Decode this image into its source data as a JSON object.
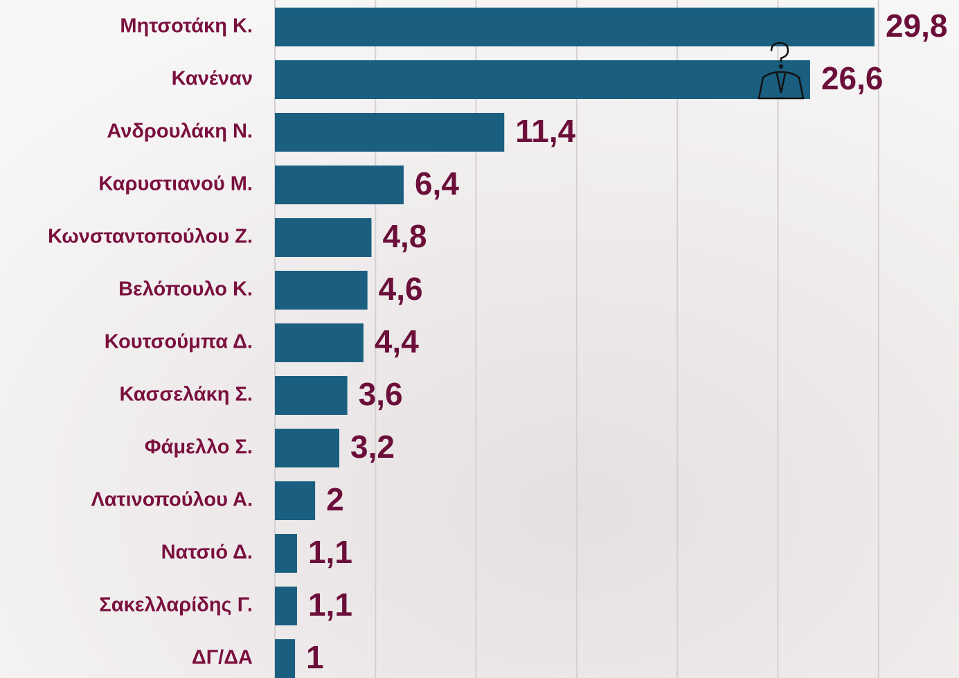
{
  "chart_data": {
    "type": "barh",
    "categories": [
      "Μητσοτάκη Κ.",
      "Κανέναν",
      "Ανδρουλάκη Ν.",
      "Καρυστιανού Μ.",
      "Κωνσταντοπούλου Ζ.",
      "Βελόπουλο Κ.",
      "Κουτσούμπα Δ.",
      "Κασσελάκη Σ.",
      "Φάμελλο Σ.",
      "Λατινοπούλου Α.",
      "Νατσιό Δ.",
      "Σακελλαρίδης Γ.",
      "ΔΓ/ΔΑ"
    ],
    "values": [
      29.8,
      26.6,
      11.4,
      6.4,
      4.8,
      4.6,
      4.4,
      3.6,
      3.2,
      2,
      1.1,
      1.1,
      1
    ],
    "value_labels": [
      "29,8",
      "26,6",
      "11,4",
      "6,4",
      "4,8",
      "4,6",
      "4,4",
      "3,6",
      "3,2",
      "2",
      "1,1",
      "1,1",
      "1"
    ],
    "color": "#1a5f80",
    "label_color": "#6b0f3a",
    "xlim": [
      0,
      34
    ],
    "xticks": [
      0,
      5,
      10,
      15,
      20,
      25,
      30
    ],
    "xtick_labels": false,
    "grid": true
  }
}
